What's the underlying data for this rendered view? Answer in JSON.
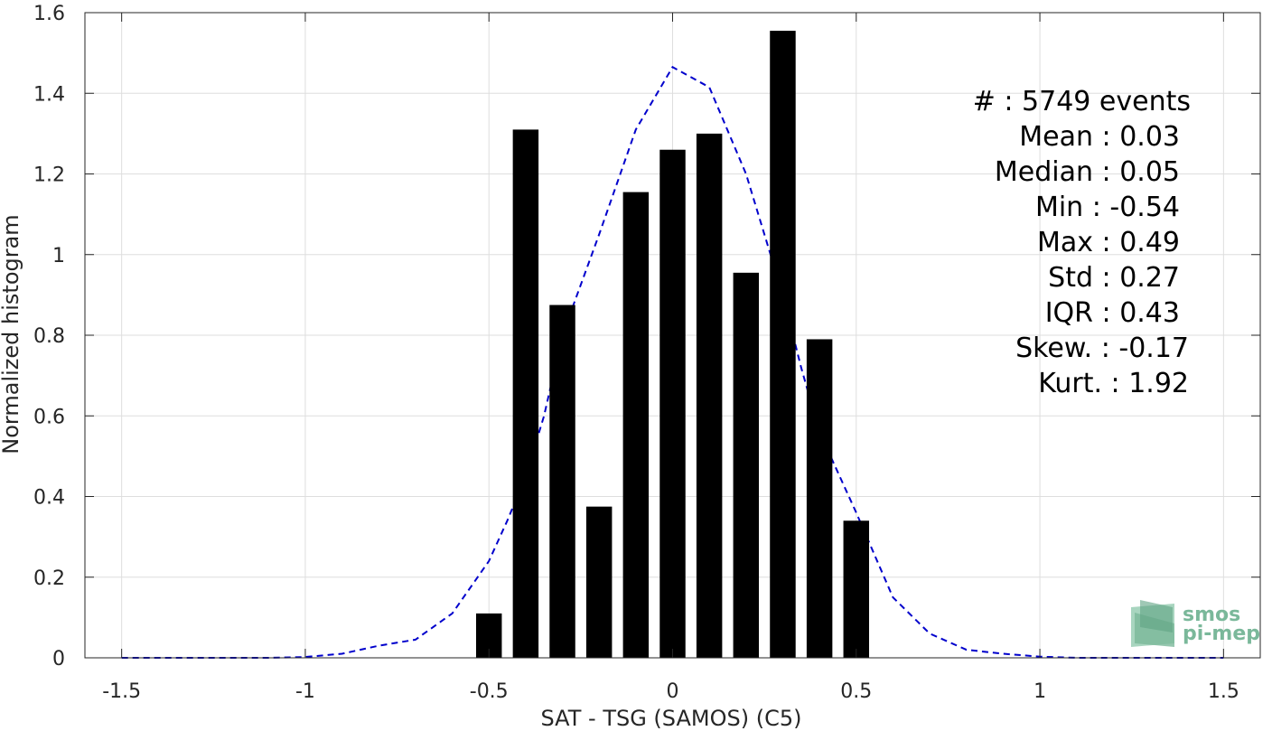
{
  "chart_data": {
    "type": "bar",
    "title": "",
    "xlabel": "SAT - TSG (SAMOS) (C5)",
    "ylabel": "Normalized histogram",
    "xlim": [
      -1.6,
      1.6
    ],
    "ylim": [
      0,
      1.6
    ],
    "x_ticks": [
      -1.5,
      -1,
      -0.5,
      0,
      0.5,
      1,
      1.5
    ],
    "x_tick_labels": [
      "-1.5",
      "-1",
      "-0.5",
      "0",
      "0.5",
      "1",
      "1.5"
    ],
    "y_ticks": [
      0,
      0.2,
      0.4,
      0.6,
      0.8,
      1,
      1.2,
      1.4,
      1.6
    ],
    "y_tick_labels": [
      "0",
      "0.2",
      "0.4",
      "0.6",
      "0.8",
      "1",
      "1.2",
      "1.4",
      "1.6"
    ],
    "grid": true,
    "bar_width": 0.07,
    "bars": {
      "x": [
        -0.5,
        -0.4,
        -0.3,
        -0.2,
        -0.1,
        0,
        0.1,
        0.2,
        0.3,
        0.4,
        0.5
      ],
      "values": [
        0.11,
        1.31,
        0.875,
        0.375,
        1.155,
        1.26,
        1.3,
        0.955,
        1.555,
        0.79,
        0.34
      ],
      "color": "#000000"
    },
    "fit_curve": {
      "style": "dashed",
      "color": "#0000cc",
      "x": [
        -1.5,
        -1.4,
        -1.3,
        -1.2,
        -1.1,
        -1.0,
        -0.9,
        -0.8,
        -0.7,
        -0.6,
        -0.5,
        -0.45,
        -0.4,
        -0.35,
        -0.3,
        -0.2,
        -0.1,
        0,
        0.1,
        0.2,
        0.3,
        0.35,
        0.4,
        0.5,
        0.6,
        0.7,
        0.8,
        0.9,
        1.0,
        1.1,
        1.2,
        1.3,
        1.4,
        1.5
      ],
      "y": [
        0,
        0,
        0,
        0,
        0,
        0.002,
        0.01,
        0.03,
        0.045,
        0.11,
        0.24,
        0.34,
        0.45,
        0.6,
        0.8,
        1.05,
        1.31,
        1.465,
        1.415,
        1.2,
        0.9,
        0.72,
        0.56,
        0.36,
        0.15,
        0.06,
        0.02,
        0.01,
        0.003,
        0,
        0,
        0,
        0,
        0
      ]
    },
    "stats": [
      "#  : 5749 events",
      "Mean : 0.03",
      "Median : 0.05",
      "Min : -0.54",
      "Max : 0.49",
      "Std : 0.27",
      "IQR : 0.43",
      "Skew. : -0.17",
      "Kurt. : 1.92"
    ]
  },
  "logo": {
    "line1": "smos",
    "line2": "pi-mep",
    "colors": [
      "#7ab89a",
      "#a8d5bf",
      "#5fa383"
    ]
  }
}
